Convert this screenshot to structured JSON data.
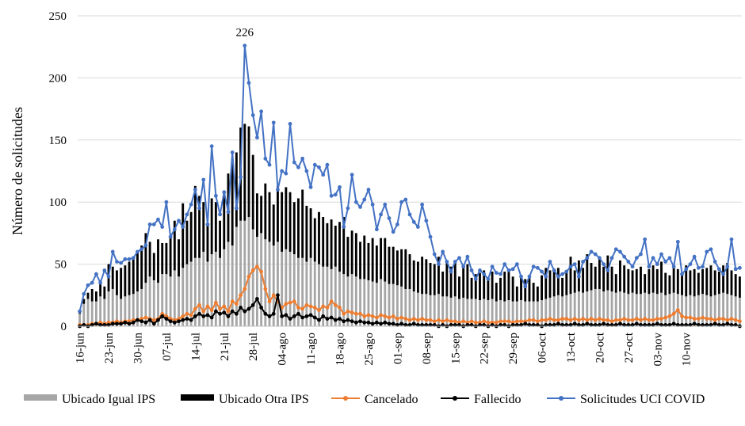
{
  "chart_data": {
    "type": "bar+line",
    "title": "",
    "xlabel": "",
    "ylabel": "Número de solicitudes",
    "ylim": [
      0,
      250
    ],
    "yticks": [
      0,
      50,
      100,
      150,
      200,
      250
    ],
    "grid": true,
    "legend_position": "bottom",
    "x_tick_labels": [
      "16-jun",
      "23-jun",
      "30-jun",
      "07-jul",
      "14-jul",
      "21-jul",
      "28-jul",
      "04-ago",
      "11-ago",
      "18-ago",
      "25-ago",
      "01-sep",
      "08-sep",
      "15-sep",
      "22-sep",
      "29-sep",
      "06-oct",
      "13-oct",
      "20-oct",
      "27-oct",
      "03-nov",
      "10-nov"
    ],
    "days_per_tick": 7,
    "n_days": 161,
    "peak_annotation": {
      "label": "226",
      "day_index": 40
    },
    "series": [
      {
        "name": "Ubicado Igual IPS",
        "kind": "bar",
        "color": "#a6a6a6",
        "values": [
          10,
          18,
          22,
          20,
          20,
          24,
          22,
          28,
          30,
          25,
          22,
          24,
          25,
          26,
          28,
          30,
          35,
          40,
          37,
          35,
          42,
          42,
          40,
          45,
          40,
          47,
          50,
          52,
          55,
          55,
          60,
          52,
          58,
          60,
          55,
          62,
          68,
          65,
          80,
          85,
          85,
          88,
          78,
          72,
          75,
          70,
          68,
          65,
          68,
          60,
          62,
          60,
          58,
          55,
          55,
          52,
          55,
          52,
          50,
          48,
          48,
          46,
          48,
          44,
          42,
          40,
          42,
          40,
          38,
          38,
          37,
          36,
          35,
          38,
          36,
          34,
          34,
          33,
          32,
          30,
          30,
          28,
          27,
          26,
          26,
          25,
          25,
          26,
          24,
          24,
          23,
          24,
          22,
          23,
          22,
          22,
          22,
          21,
          22,
          21,
          22,
          20,
          21,
          20,
          21,
          20,
          20,
          21,
          20,
          20,
          20,
          20,
          21,
          22,
          23,
          24,
          25,
          24,
          25,
          26,
          27,
          28,
          27,
          28,
          29,
          30,
          30,
          28,
          29,
          28,
          27,
          28,
          27,
          26,
          27,
          26,
          26,
          27,
          26,
          27,
          26,
          27,
          25,
          26,
          27,
          26,
          25,
          24,
          25,
          24,
          25,
          26,
          25,
          24,
          25,
          26,
          27,
          26,
          25,
          24,
          23
        ]
      },
      {
        "name": "Ubicado Otra IPS",
        "kind": "bar",
        "color": "#000000",
        "values": [
          2,
          4,
          5,
          10,
          8,
          13,
          10,
          22,
          18,
          20,
          25,
          25,
          27,
          30,
          32,
          35,
          40,
          28,
          22,
          35,
          25,
          25,
          32,
          40,
          30,
          52,
          35,
          40,
          58,
          50,
          40,
          30,
          45,
          40,
          30,
          45,
          55,
          70,
          60,
          75,
          78,
          73,
          60,
          35,
          30,
          45,
          40,
          33,
          45,
          48,
          50,
          48,
          42,
          48,
          55,
          45,
          40,
          35,
          42,
          40,
          35,
          40,
          33,
          40,
          46,
          32,
          35,
          35,
          30,
          35,
          30,
          35,
          30,
          33,
          35,
          30,
          30,
          28,
          30,
          32,
          28,
          25,
          25,
          30,
          28,
          26,
          25,
          30,
          20,
          28,
          25,
          28,
          18,
          25,
          28,
          17,
          20,
          22,
          23,
          18,
          22,
          15,
          18,
          24,
          25,
          20,
          12,
          20,
          18,
          20,
          15,
          12,
          20,
          25,
          22,
          20,
          22,
          15,
          20,
          30,
          18,
          25,
          20,
          30,
          22,
          18,
          24,
          20,
          28,
          20,
          15,
          25,
          22,
          20,
          18,
          20,
          22,
          15,
          20,
          22,
          20,
          25,
          18,
          15,
          22,
          20,
          18,
          25,
          20,
          22,
          18,
          20,
          22,
          25,
          20,
          18,
          22,
          25,
          20,
          18,
          17
        ]
      },
      {
        "name": "Cancelado",
        "kind": "line",
        "color": "#ed7d31",
        "values": [
          1,
          1,
          1,
          2,
          2,
          3,
          2,
          3,
          3,
          4,
          3,
          4,
          4,
          5,
          5,
          6,
          7,
          6,
          5,
          6,
          10,
          8,
          6,
          5,
          6,
          8,
          10,
          9,
          14,
          17,
          12,
          16,
          13,
          19,
          14,
          16,
          12,
          20,
          18,
          25,
          30,
          40,
          45,
          48,
          44,
          30,
          20,
          25,
          20,
          15,
          18,
          19,
          20,
          15,
          14,
          17,
          16,
          15,
          13,
          16,
          15,
          20,
          17,
          15,
          10,
          12,
          11,
          10,
          10,
          8,
          9,
          8,
          7,
          9,
          8,
          7,
          8,
          6,
          7,
          6,
          5,
          6,
          5,
          6,
          5,
          5,
          4,
          5,
          4,
          5,
          4,
          4,
          3,
          4,
          3,
          4,
          3,
          3,
          4,
          3,
          3,
          3,
          4,
          4,
          4,
          3,
          4,
          4,
          4,
          5,
          5,
          4,
          5,
          5,
          6,
          5,
          5,
          6,
          6,
          5,
          6,
          5,
          6,
          5,
          6,
          5,
          6,
          5,
          5,
          4,
          5,
          5,
          6,
          5,
          5,
          6,
          5,
          6,
          5,
          5,
          6,
          6,
          7,
          8,
          10,
          13,
          8,
          7,
          7,
          6,
          6,
          7,
          6,
          6,
          5,
          6,
          6,
          5,
          6,
          5,
          4
        ]
      },
      {
        "name": "Fallecido",
        "kind": "line",
        "color": "#000000",
        "values": [
          0,
          1,
          0,
          1,
          2,
          1,
          1,
          1,
          2,
          2,
          2,
          3,
          2,
          3,
          5,
          4,
          3,
          5,
          2,
          5,
          8,
          6,
          4,
          3,
          4,
          5,
          6,
          5,
          8,
          10,
          8,
          9,
          7,
          12,
          10,
          11,
          8,
          12,
          10,
          15,
          12,
          14,
          17,
          22,
          15,
          10,
          8,
          10,
          25,
          8,
          9,
          6,
          8,
          10,
          7,
          8,
          9,
          7,
          5,
          8,
          6,
          7,
          5,
          6,
          4,
          5,
          4,
          3,
          4,
          3,
          3,
          2,
          3,
          2,
          3,
          2,
          2,
          1,
          2,
          1,
          1,
          2,
          1,
          1,
          1,
          1,
          1,
          0,
          1,
          0,
          1,
          1,
          1,
          0,
          1,
          1,
          0,
          1,
          1,
          0,
          1,
          0,
          1,
          1,
          0,
          1,
          1,
          1,
          2,
          1,
          1,
          1,
          0,
          1,
          1,
          1,
          2,
          1,
          1,
          1,
          2,
          1,
          1,
          2,
          1,
          1,
          1,
          2,
          1,
          1,
          1,
          2,
          1,
          1,
          1,
          2,
          1,
          1,
          1,
          1,
          2,
          1,
          1,
          1,
          2,
          1,
          1,
          1,
          1,
          2,
          1,
          1,
          1,
          1,
          2,
          1,
          1,
          2,
          1,
          1,
          0
        ]
      },
      {
        "name": "Solicitudes UCI COVID",
        "kind": "line",
        "color": "#4472c4",
        "values": [
          12,
          26,
          33,
          35,
          42,
          35,
          45,
          40,
          60,
          52,
          51,
          54,
          54,
          55,
          60,
          62,
          65,
          82,
          82,
          86,
          80,
          100,
          72,
          78,
          85,
          80,
          90,
          98,
          110,
          95,
          118,
          82,
          145,
          105,
          90,
          108,
          92,
          140,
          95,
          120,
          226,
          196,
          170,
          152,
          173,
          135,
          130,
          164,
          110,
          125,
          123,
          163,
          132,
          128,
          135,
          125,
          112,
          130,
          128,
          122,
          130,
          105,
          106,
          112,
          80,
          95,
          122,
          100,
          96,
          102,
          110,
          98,
          78,
          90,
          98,
          87,
          76,
          82,
          100,
          102,
          90,
          84,
          80,
          98,
          85,
          72,
          58,
          50,
          60,
          52,
          44,
          52,
          55,
          48,
          56,
          45,
          38,
          45,
          42,
          38,
          48,
          43,
          42,
          50,
          45,
          46,
          50,
          40,
          32,
          40,
          48,
          47,
          44,
          40,
          52,
          45,
          40,
          42,
          44,
          48,
          50,
          40,
          52,
          55,
          60,
          58,
          55,
          50,
          45,
          55,
          62,
          60,
          56,
          52,
          48,
          55,
          58,
          70,
          48,
          55,
          50,
          58,
          52,
          55,
          48,
          68,
          42,
          46,
          50,
          56,
          47,
          48,
          60,
          62,
          52,
          46,
          42,
          48,
          70,
          46,
          47
        ]
      }
    ],
    "legend": [
      "Ubicado Igual IPS",
      "Ubicado Otra IPS",
      "Cancelado",
      "Fallecido",
      "Solicitudes UCI COVID"
    ]
  }
}
